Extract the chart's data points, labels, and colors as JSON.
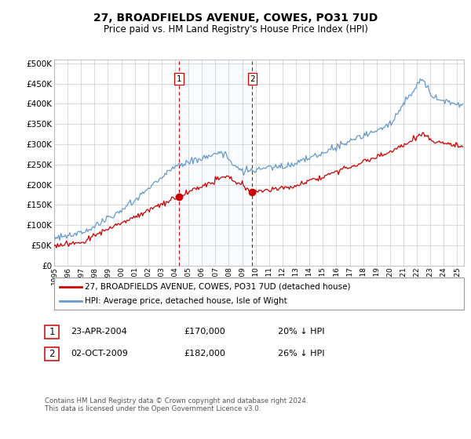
{
  "title": "27, BROADFIELDS AVENUE, COWES, PO31 7UD",
  "subtitle": "Price paid vs. HM Land Registry's House Price Index (HPI)",
  "ylabel_ticks": [
    0,
    50000,
    100000,
    150000,
    200000,
    250000,
    300000,
    350000,
    400000,
    450000,
    500000
  ],
  "ylim": [
    0,
    510000
  ],
  "xlim_start": 1995.0,
  "xlim_end": 2025.5,
  "sale1_x": 2004.31,
  "sale1_y": 170000,
  "sale1_label": "1",
  "sale1_date": "23-APR-2004",
  "sale1_price": "£170,000",
  "sale1_hpi": "20% ↓ HPI",
  "sale2_x": 2009.75,
  "sale2_y": 182000,
  "sale2_label": "2",
  "sale2_date": "02-OCT-2009",
  "sale2_price": "£182,000",
  "sale2_hpi": "26% ↓ HPI",
  "legend_line1": "27, BROADFIELDS AVENUE, COWES, PO31 7UD (detached house)",
  "legend_line2": "HPI: Average price, detached house, Isle of Wight",
  "footer": "Contains HM Land Registry data © Crown copyright and database right 2024.\nThis data is licensed under the Open Government Licence v3.0.",
  "red_color": "#cc0000",
  "blue_color": "#6699cc",
  "bg_shade_color": "#ddeeff",
  "marker_fill": "#cc0000",
  "dashed_color": "#cc0000"
}
